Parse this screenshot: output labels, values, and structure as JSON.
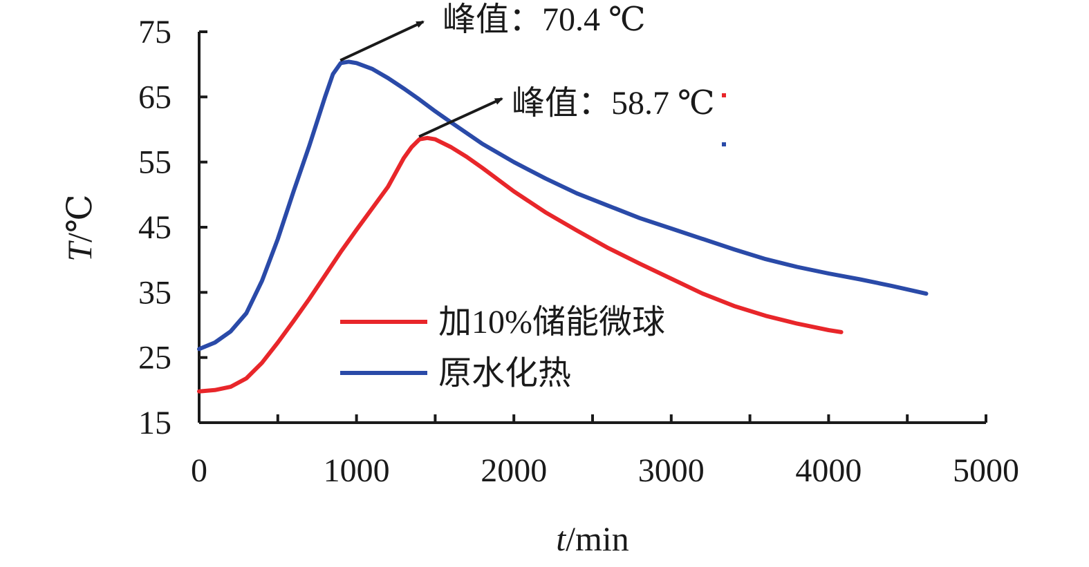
{
  "chart_data": {
    "type": "line",
    "xlabel_var": "t",
    "xlabel_unit": "/min",
    "ylabel_var": "T",
    "ylabel_unit": "/℃",
    "xlim": [
      0,
      5000
    ],
    "ylim": [
      15,
      75
    ],
    "xticks": [
      0,
      1000,
      2000,
      3000,
      4000,
      5000
    ],
    "yticks": [
      15,
      25,
      35,
      45,
      55,
      65,
      75
    ],
    "legend_position": "lower-center",
    "series": [
      {
        "name": "加10%储能微球",
        "color": "#e8262a",
        "x": [
          0,
          100,
          200,
          300,
          400,
          500,
          600,
          700,
          800,
          900,
          1000,
          1100,
          1200,
          1300,
          1350,
          1400,
          1450,
          1500,
          1600,
          1700,
          1800,
          1900,
          2000,
          2200,
          2400,
          2600,
          2800,
          3000,
          3200,
          3400,
          3600,
          3800,
          4000,
          4080
        ],
        "y": [
          19.8,
          20.0,
          20.5,
          21.8,
          24.2,
          27.3,
          30.6,
          34.0,
          37.6,
          41.2,
          44.6,
          47.9,
          51.2,
          55.6,
          57.3,
          58.5,
          58.7,
          58.5,
          57.3,
          55.8,
          54.1,
          52.3,
          50.5,
          47.3,
          44.5,
          41.8,
          39.4,
          37.1,
          34.8,
          32.9,
          31.4,
          30.2,
          29.2,
          28.9
        ]
      },
      {
        "name": "原水化热",
        "color": "#2a4aa8",
        "x": [
          0,
          100,
          200,
          300,
          400,
          500,
          600,
          700,
          800,
          850,
          900,
          950,
          1000,
          1100,
          1200,
          1300,
          1400,
          1500,
          1600,
          1800,
          2000,
          2200,
          2400,
          2600,
          2800,
          3000,
          3200,
          3400,
          3600,
          3800,
          4000,
          4200,
          4400,
          4620
        ],
        "y": [
          26.3,
          27.3,
          29.0,
          31.8,
          36.8,
          43.2,
          50.5,
          57.5,
          65.0,
          68.5,
          70.2,
          70.4,
          70.2,
          69.3,
          67.9,
          66.3,
          64.6,
          62.8,
          61.1,
          57.8,
          55.0,
          52.5,
          50.2,
          48.3,
          46.4,
          44.8,
          43.2,
          41.6,
          40.1,
          38.9,
          37.9,
          37.0,
          36.0,
          34.8
        ]
      }
    ],
    "annotations": [
      {
        "label": "峰值：",
        "value": "70.4 ℃",
        "peak_x": 950,
        "peak_y": 70.4
      },
      {
        "label": "峰值：",
        "value": "58.7 ℃",
        "peak_x": 1450,
        "peak_y": 58.7
      }
    ]
  }
}
